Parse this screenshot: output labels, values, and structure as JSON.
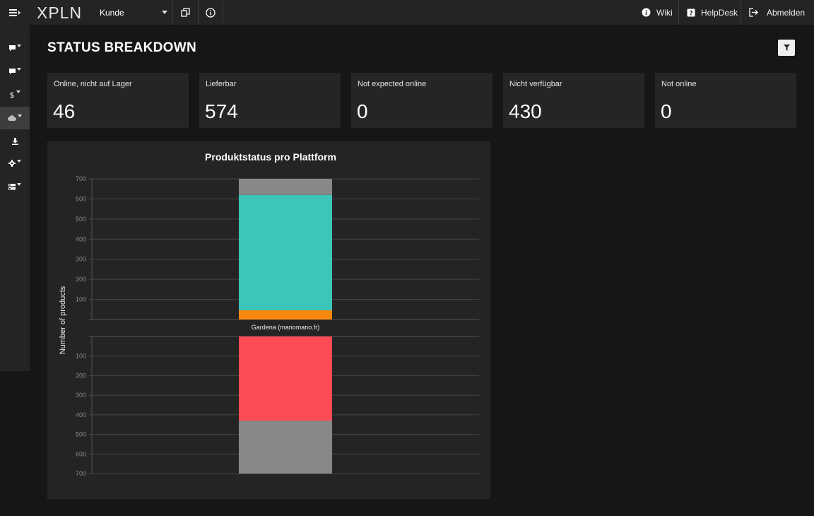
{
  "topbar": {
    "brand": "XPLN",
    "customer_select": "Kunde",
    "wiki": "Wiki",
    "helpdesk": "HelpDesk",
    "logout": "Abmelden"
  },
  "page": {
    "title": "STATUS BREAKDOWN"
  },
  "stats": [
    {
      "label": "Online, nicht auf Lager",
      "value": "46"
    },
    {
      "label": "Lieferbar",
      "value": "574"
    },
    {
      "label": "Not expected online",
      "value": "0"
    },
    {
      "label": "Nicht verfügbar",
      "value": "430"
    },
    {
      "label": "Not online",
      "value": "0"
    }
  ],
  "chart_data": {
    "type": "bar",
    "title": "Produktstatus pro Plattform",
    "ylabel": "Number of products",
    "categories": [
      "Gardena (manomano.fr)"
    ],
    "ylim": [
      0,
      700
    ],
    "upper_ticks": [
      "100",
      "200",
      "300",
      "400",
      "500",
      "600",
      "700"
    ],
    "lower_ticks": [
      "100",
      "200",
      "300",
      "400",
      "500",
      "600",
      "700"
    ],
    "upper_series": [
      {
        "values": [
          46
        ],
        "color": "#f7880e"
      },
      {
        "values": [
          574
        ],
        "color": "#3cc5b8"
      },
      {
        "values": [
          80
        ],
        "color": "#888888"
      }
    ],
    "lower_series": [
      {
        "values": [
          430
        ],
        "color": "#fd4b55"
      },
      {
        "values": [
          270
        ],
        "color": "#888888"
      }
    ]
  }
}
